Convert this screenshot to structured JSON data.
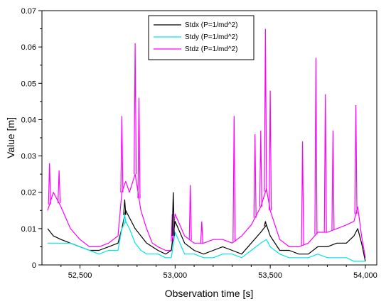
{
  "chart_data": {
    "type": "line",
    "title": "",
    "xlabel": "Observation time [s]",
    "ylabel": "Value [m]",
    "xlim": [
      52300,
      54060
    ],
    "ylim": [
      0,
      0.07
    ],
    "x_ticks": [
      52500,
      53000,
      53500,
      54000
    ],
    "x_tick_labels": [
      "52,500",
      "53,000",
      "53,500",
      "54,000"
    ],
    "y_ticks": [
      0,
      0.01,
      0.02,
      0.03,
      0.04,
      0.05,
      0.06,
      0.07
    ],
    "y_tick_labels": [
      "0",
      "0.01",
      "0.02",
      "0.03",
      "0.04",
      "0.05",
      "0.06",
      "0.07"
    ],
    "grid": false,
    "legend_position": "top-center",
    "series": [
      {
        "name": "Stdx (P=1/md^2)",
        "color": "#000000",
        "x": [
          52330,
          52360,
          52400,
          52450,
          52500,
          52550,
          52600,
          52650,
          52700,
          52720,
          52740,
          52760,
          52790,
          52820,
          52850,
          52880,
          52910,
          52950,
          52980,
          53000,
          53050,
          53100,
          53150,
          53200,
          53250,
          53300,
          53350,
          53400,
          53450,
          53480,
          53500,
          53550,
          53600,
          53650,
          53700,
          53750,
          53800,
          53850,
          53900,
          53940,
          53960,
          53980,
          54000
        ],
        "y": [
          0.01,
          0.008,
          0.007,
          0.006,
          0.005,
          0.004,
          0.004,
          0.005,
          0.006,
          0.01,
          0.015,
          0.013,
          0.01,
          0.008,
          0.006,
          0.005,
          0.004,
          0.003,
          0.004,
          0.012,
          0.006,
          0.004,
          0.003,
          0.004,
          0.005,
          0.004,
          0.003,
          0.006,
          0.009,
          0.011,
          0.008,
          0.004,
          0.004,
          0.003,
          0.003,
          0.005,
          0.005,
          0.006,
          0.006,
          0.008,
          0.01,
          0.006,
          0.001
        ]
      },
      {
        "name": "Stdy (P=1/md^2)",
        "color": "#00e5e5",
        "x": [
          52330,
          52360,
          52400,
          52450,
          52500,
          52550,
          52600,
          52650,
          52700,
          52720,
          52740,
          52760,
          52790,
          52820,
          52850,
          52880,
          52910,
          52950,
          52980,
          53000,
          53050,
          53100,
          53150,
          53200,
          53250,
          53300,
          53350,
          53400,
          53450,
          53480,
          53500,
          53550,
          53600,
          53650,
          53700,
          53750,
          53800,
          53850,
          53900,
          53940,
          53960,
          53980,
          54000
        ],
        "y": [
          0.006,
          0.006,
          0.006,
          0.006,
          0.005,
          0.004,
          0.003,
          0.004,
          0.004,
          0.01,
          0.012,
          0.01,
          0.006,
          0.004,
          0.003,
          0.003,
          0.003,
          0.002,
          0.002,
          0.009,
          0.003,
          0.003,
          0.002,
          0.002,
          0.003,
          0.003,
          0.002,
          0.004,
          0.006,
          0.007,
          0.005,
          0.003,
          0.002,
          0.002,
          0.002,
          0.003,
          0.002,
          0.002,
          0.002,
          0.001,
          0.001,
          0.001,
          0.001
        ]
      },
      {
        "name": "Stdz (P=1/md^2)",
        "color": "#ff00ff",
        "x": [
          52330,
          52360,
          52400,
          52450,
          52500,
          52550,
          52600,
          52650,
          52700,
          52720,
          52740,
          52760,
          52790,
          52820,
          52850,
          52880,
          52910,
          52950,
          52980,
          53000,
          53050,
          53100,
          53150,
          53200,
          53250,
          53300,
          53350,
          53400,
          53450,
          53480,
          53500,
          53550,
          53600,
          53650,
          53700,
          53750,
          53800,
          53850,
          53900,
          53940,
          53960,
          53980,
          54000
        ],
        "y": [
          0.015,
          0.02,
          0.016,
          0.01,
          0.007,
          0.005,
          0.005,
          0.006,
          0.008,
          0.02,
          0.023,
          0.02,
          0.025,
          0.015,
          0.01,
          0.006,
          0.005,
          0.004,
          0.004,
          0.014,
          0.008,
          0.006,
          0.006,
          0.007,
          0.007,
          0.006,
          0.008,
          0.011,
          0.016,
          0.021,
          0.015,
          0.007,
          0.005,
          0.005,
          0.006,
          0.009,
          0.009,
          0.01,
          0.011,
          0.012,
          0.016,
          0.008,
          0.002
        ]
      }
    ],
    "spikes": [
      {
        "series": 2,
        "x": 52340,
        "y": 0.028
      },
      {
        "series": 2,
        "x": 52390,
        "y": 0.026
      },
      {
        "series": 2,
        "x": 52720,
        "y": 0.041
      },
      {
        "series": 2,
        "x": 52790,
        "y": 0.061
      },
      {
        "series": 2,
        "x": 52810,
        "y": 0.046
      },
      {
        "series": 2,
        "x": 52985,
        "y": 0.014
      },
      {
        "series": 2,
        "x": 53080,
        "y": 0.022
      },
      {
        "series": 2,
        "x": 53140,
        "y": 0.012
      },
      {
        "series": 2,
        "x": 53310,
        "y": 0.041
      },
      {
        "series": 2,
        "x": 53420,
        "y": 0.036
      },
      {
        "series": 2,
        "x": 53450,
        "y": 0.037
      },
      {
        "series": 2,
        "x": 53475,
        "y": 0.065
      },
      {
        "series": 2,
        "x": 53500,
        "y": 0.048
      },
      {
        "series": 2,
        "x": 53670,
        "y": 0.034
      },
      {
        "series": 2,
        "x": 53740,
        "y": 0.057
      },
      {
        "series": 2,
        "x": 53790,
        "y": 0.047
      },
      {
        "series": 2,
        "x": 53830,
        "y": 0.037
      },
      {
        "series": 2,
        "x": 53950,
        "y": 0.044
      },
      {
        "series": 0,
        "x": 52735,
        "y": 0.018
      },
      {
        "series": 0,
        "x": 52990,
        "y": 0.02
      },
      {
        "series": 0,
        "x": 53475,
        "y": 0.012
      },
      {
        "series": 1,
        "x": 52735,
        "y": 0.014
      }
    ]
  }
}
